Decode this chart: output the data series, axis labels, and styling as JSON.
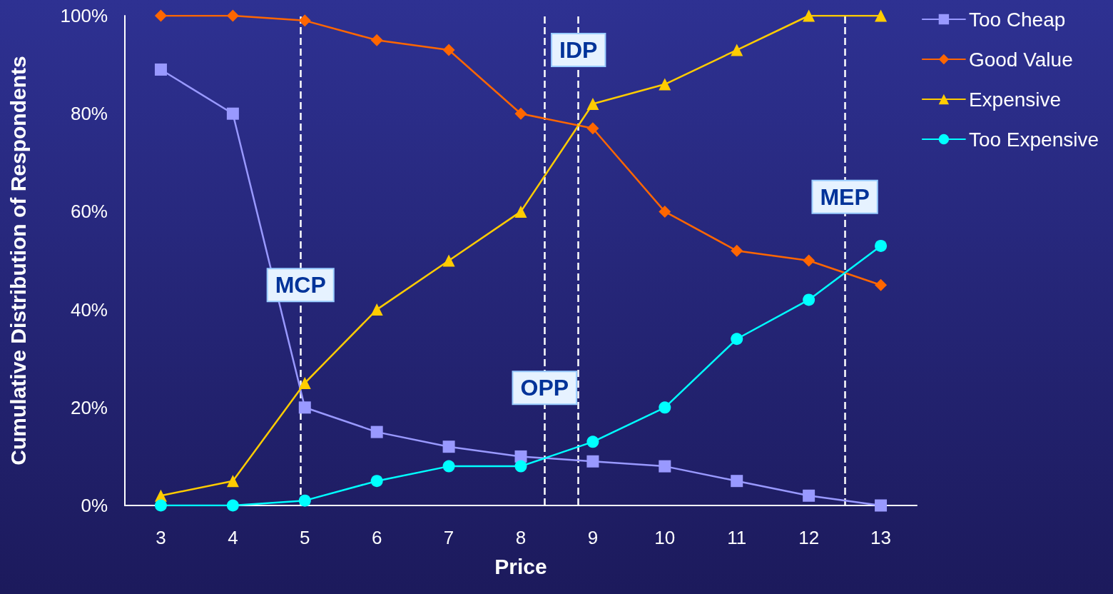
{
  "chart_data": {
    "type": "line",
    "xlabel": "Price",
    "ylabel": "Cumulative Distribution of Respondents",
    "x": [
      3,
      4,
      5,
      6,
      7,
      8,
      9,
      10,
      11,
      12,
      13
    ],
    "xlim": [
      2.5,
      13.5
    ],
    "xticks": [
      3,
      4,
      5,
      6,
      7,
      8,
      9,
      10,
      11,
      12,
      13
    ],
    "ylim": [
      0,
      100
    ],
    "yticks": [
      {
        "value": 0,
        "label": "0%"
      },
      {
        "value": 20,
        "label": "20%"
      },
      {
        "value": 40,
        "label": "40%"
      },
      {
        "value": 60,
        "label": "60%"
      },
      {
        "value": 80,
        "label": "80%"
      },
      {
        "value": 100,
        "label": "100%"
      }
    ],
    "grid": false,
    "legend": "top right",
    "series": [
      {
        "name": "Too Cheap",
        "color": "#9999ff",
        "marker": "square",
        "values": [
          89,
          80,
          20,
          15,
          12,
          10,
          9,
          8,
          5,
          2,
          0
        ]
      },
      {
        "name": "Good Value",
        "color": "#ff6600",
        "marker": "diamond",
        "values": [
          100,
          100,
          99,
          95,
          93,
          80,
          77,
          60,
          52,
          50,
          45
        ]
      },
      {
        "name": "Expensive",
        "color": "#ffcc00",
        "marker": "triangle",
        "values": [
          2,
          5,
          25,
          40,
          50,
          60,
          82,
          86,
          93,
          100,
          100
        ]
      },
      {
        "name": "Too Expensive",
        "color": "#00ffff",
        "marker": "circle",
        "values": [
          0,
          0,
          1,
          5,
          8,
          8,
          13,
          20,
          34,
          42,
          53
        ]
      }
    ],
    "ref_lines": [
      {
        "axis": "x",
        "value": 4.94,
        "color": "#ffffff",
        "line_style": "dashed"
      },
      {
        "axis": "x",
        "value": 8.33,
        "color": "#ffffff",
        "line_style": "dashed"
      },
      {
        "axis": "x",
        "value": 8.8,
        "color": "#ffffff",
        "line_style": "dashed"
      },
      {
        "axis": "x",
        "value": 12.5,
        "color": "#ffffff",
        "line_style": "dashed"
      }
    ],
    "annotations": [
      {
        "text": "MCP",
        "x": 4.94,
        "y": 45
      },
      {
        "text": "IDP",
        "x": 8.8,
        "y": 93
      },
      {
        "text": "OPP",
        "x": 8.33,
        "y": 24
      },
      {
        "text": "MEP",
        "x": 12.5,
        "y": 63
      }
    ]
  }
}
